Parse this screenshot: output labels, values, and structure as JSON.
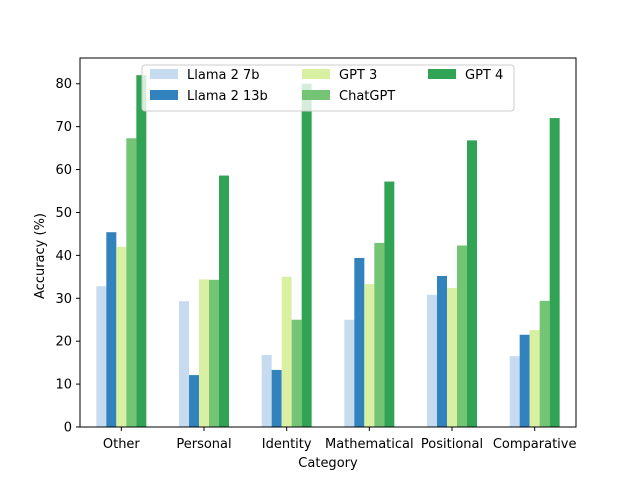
{
  "chart_data": {
    "type": "bar",
    "title": "",
    "xlabel": "Category",
    "ylabel": "Accuracy (%)",
    "ylim": [
      0,
      86
    ],
    "yticks": [
      0,
      10,
      20,
      30,
      40,
      50,
      60,
      70,
      80
    ],
    "categories": [
      "Other",
      "Personal",
      "Identity",
      "Mathematical",
      "Positional",
      "Comparative"
    ],
    "series": [
      {
        "name": "Llama 2 7b",
        "color": "#c6dbef",
        "values": [
          32.8,
          29.3,
          16.8,
          25.0,
          30.8,
          16.5
        ]
      },
      {
        "name": "Llama 2 13b",
        "color": "#3182bd",
        "values": [
          45.4,
          12.1,
          13.3,
          39.4,
          35.2,
          21.5
        ]
      },
      {
        "name": "GPT 3",
        "color": "#d9f0a3",
        "values": [
          42.0,
          34.4,
          35.0,
          33.3,
          32.4,
          22.6
        ]
      },
      {
        "name": "ChatGPT",
        "color": "#74c476",
        "values": [
          67.3,
          34.3,
          25.0,
          42.9,
          42.3,
          29.4
        ]
      },
      {
        "name": "GPT 4",
        "color": "#31a354",
        "values": [
          82.0,
          58.6,
          80.0,
          57.2,
          66.8,
          72.0
        ]
      }
    ],
    "legend": "top-center"
  }
}
